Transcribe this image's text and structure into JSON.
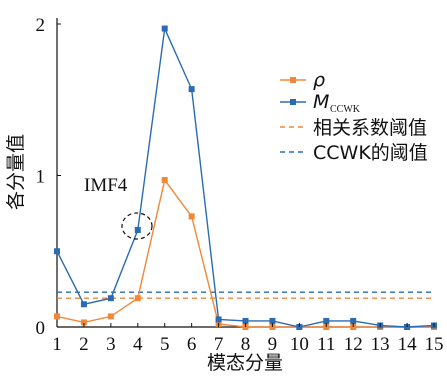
{
  "chart_data": {
    "type": "line",
    "xlabel": "模态分量",
    "ylabel": "各分量值",
    "x": [
      1,
      2,
      3,
      4,
      5,
      6,
      7,
      8,
      9,
      10,
      11,
      12,
      13,
      14,
      15
    ],
    "xlim": [
      1,
      15
    ],
    "ylim": [
      0,
      2
    ],
    "x_ticks": [
      "1",
      "2",
      "3",
      "4",
      "5",
      "6",
      "7",
      "8",
      "9",
      "10",
      "11",
      "12",
      "13",
      "14",
      "15"
    ],
    "y_ticks": [
      "0",
      "1",
      "2"
    ],
    "series": [
      {
        "name": "ρ",
        "color": "#f0883a",
        "marker": "square",
        "values": [
          0.07,
          0.03,
          0.07,
          0.19,
          0.97,
          0.73,
          0.02,
          0.0,
          0.0,
          0.0,
          0.0,
          0.0,
          0.0,
          0.0,
          0.0
        ]
      },
      {
        "name": "M",
        "name_subscript": "CCWK",
        "color": "#2a6bb3",
        "marker": "square",
        "values": [
          0.5,
          0.15,
          0.19,
          0.64,
          1.97,
          1.57,
          0.05,
          0.04,
          0.04,
          0.0,
          0.04,
          0.04,
          0.01,
          0.0,
          0.01
        ]
      }
    ],
    "thresholds": [
      {
        "name": "相关系数阈值",
        "value": 0.19,
        "color": "#f0883a",
        "style": "dashed"
      },
      {
        "name": "CCWK的阈值",
        "value": 0.23,
        "color": "#2a6bb3",
        "style": "dashed"
      }
    ],
    "annotations": [
      {
        "text": "IMF4",
        "target_x": 4,
        "target_y": 0.64,
        "shape": "dashed-ellipse"
      }
    ],
    "legend_position": "right",
    "grid": false
  }
}
